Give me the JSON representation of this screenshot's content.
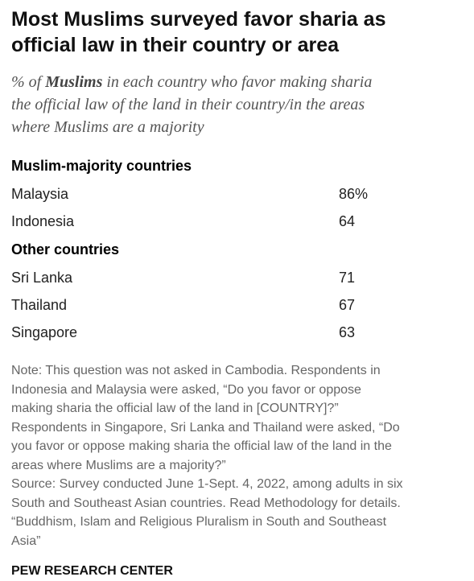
{
  "header": {
    "title_lines": [
      "Most Muslims surveyed favor sharia as",
      "official law in their country or area"
    ],
    "subtitle": {
      "pre": "% of ",
      "bold": "Muslims",
      "post_lines": [
        " in each country who favor making sharia",
        "the official law of the land in their country/in the areas",
        "where Muslims are a majority"
      ]
    }
  },
  "table": {
    "groups": [
      {
        "heading": "Muslim-majority countries",
        "rows": [
          [
            "Malaysia",
            "86%"
          ],
          [
            "Indonesia",
            "64"
          ]
        ]
      },
      {
        "heading": "Other countries",
        "rows": [
          [
            "Sri Lanka",
            "71"
          ],
          [
            "Thailand",
            "67"
          ],
          [
            "Singapore",
            "63"
          ]
        ]
      }
    ]
  },
  "notes": [
    "Note: This question was not asked in Cambodia. Respondents in",
    "Indonesia and Malaysia were asked, “Do you favor or oppose",
    "making sharia the official law of the land in [COUNTRY]?”",
    "Respondents in Singapore, Sri Lanka and Thailand were asked, “Do",
    "you favor or oppose making sharia the official law of the land in the",
    "areas where Muslims are a majority?”",
    "Source: Survey conducted June 1-Sept. 4, 2022, among adults in six",
    "South and Southeast Asian countries. Read Methodology for details.",
    "“Buddhism, Islam and Religious Pluralism in South and Southeast",
    "Asia”"
  ],
  "footer": "PEW RESEARCH CENTER"
}
